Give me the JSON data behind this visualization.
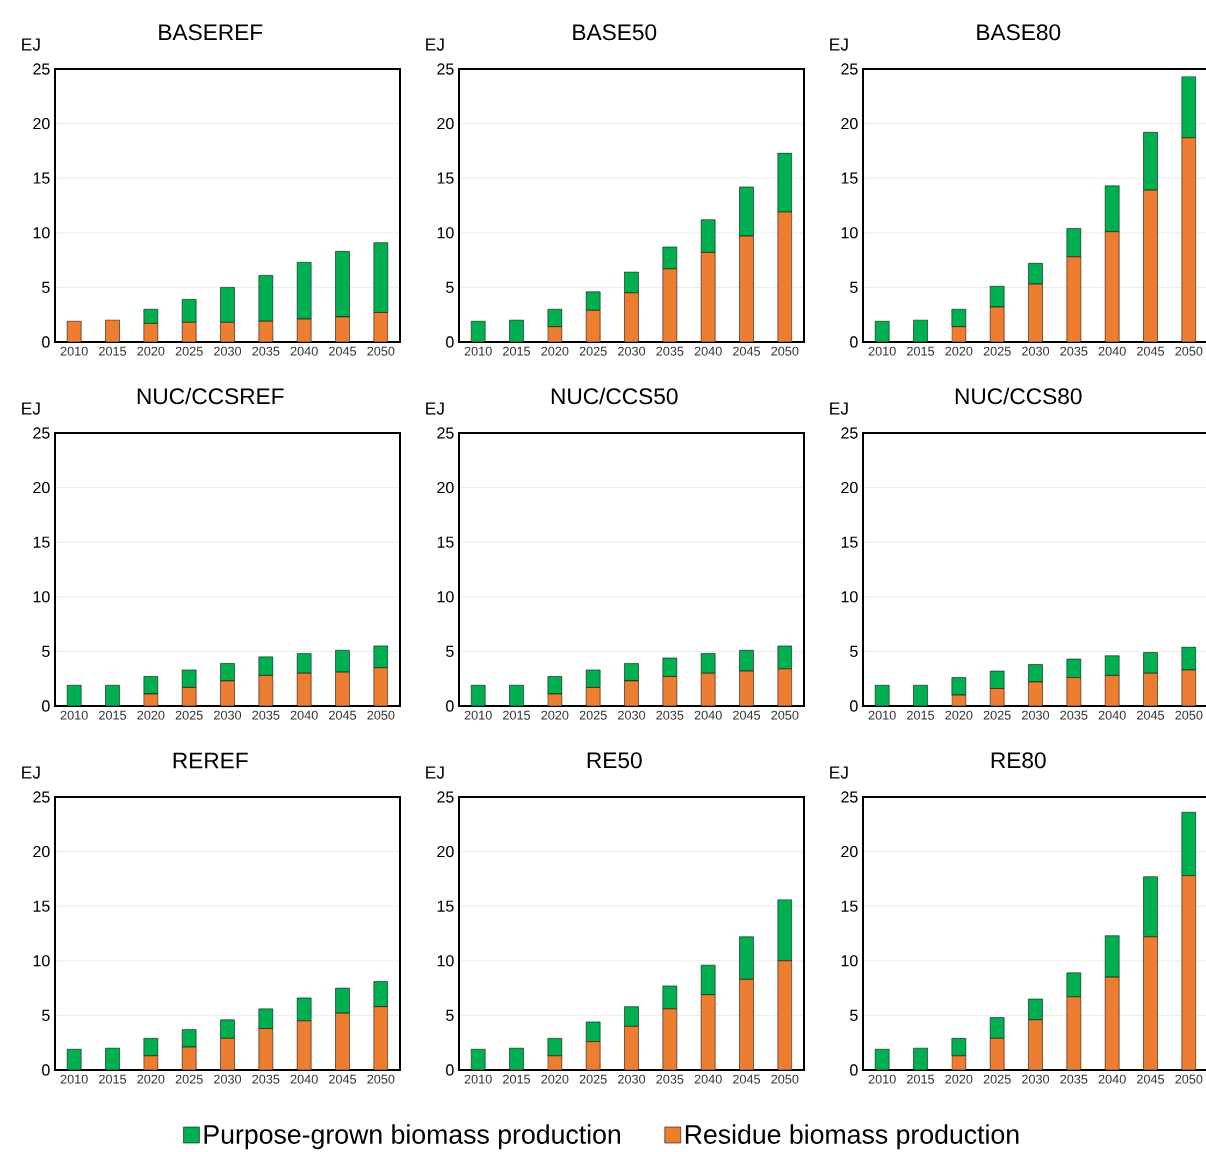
{
  "chart_data": [
    {
      "type": "bar",
      "title": "BASEREF",
      "ylabel": "EJ",
      "stacked": true,
      "grid": "y",
      "categories": [
        "2010",
        "2015",
        "2020",
        "2025",
        "2030",
        "2035",
        "2040",
        "2045",
        "2050"
      ],
      "ylim": [
        0,
        25
      ],
      "yticks": [
        0,
        5,
        10,
        15,
        20,
        25
      ],
      "series": [
        {
          "color": "#ed7d31",
          "values": [
            1.9,
            2.0,
            1.7,
            1.8,
            1.8,
            1.9,
            2.1,
            2.3,
            2.7
          ]
        },
        {
          "color": "#00b050",
          "values": [
            0,
            0,
            1.3,
            2.1,
            3.2,
            4.2,
            5.2,
            6.0,
            6.4
          ]
        }
      ]
    },
    {
      "type": "bar",
      "title": "BASE50",
      "ylabel": "EJ",
      "stacked": true,
      "grid": "y",
      "categories": [
        "2010",
        "2015",
        "2020",
        "2025",
        "2030",
        "2035",
        "2040",
        "2045",
        "2050"
      ],
      "ylim": [
        0,
        25
      ],
      "yticks": [
        0,
        5,
        10,
        15,
        20,
        25
      ],
      "series": [
        {
          "color": "#ed7d31",
          "values": [
            0,
            0,
            1.4,
            2.9,
            4.5,
            6.7,
            8.2,
            9.7,
            11.9
          ]
        },
        {
          "color": "#00b050",
          "values": [
            1.9,
            2.0,
            1.6,
            1.7,
            1.9,
            2.0,
            3.0,
            4.5,
            5.4
          ]
        }
      ]
    },
    {
      "type": "bar",
      "title": "BASE80",
      "ylabel": "EJ",
      "stacked": true,
      "grid": "y",
      "categories": [
        "2010",
        "2015",
        "2020",
        "2025",
        "2030",
        "2035",
        "2040",
        "2045",
        "2050"
      ],
      "ylim": [
        0,
        25
      ],
      "yticks": [
        0,
        5,
        10,
        15,
        20,
        25
      ],
      "series": [
        {
          "color": "#ed7d31",
          "values": [
            0,
            0,
            1.4,
            3.2,
            5.3,
            7.8,
            10.1,
            13.9,
            18.7
          ]
        },
        {
          "color": "#00b050",
          "values": [
            1.9,
            2.0,
            1.6,
            1.9,
            1.9,
            2.6,
            4.2,
            5.3,
            5.6
          ]
        }
      ]
    },
    {
      "type": "bar",
      "title": "NUC/CCSREF",
      "ylabel": "EJ",
      "stacked": true,
      "grid": "y",
      "categories": [
        "2010",
        "2015",
        "2020",
        "2025",
        "2030",
        "2035",
        "2040",
        "2045",
        "2050"
      ],
      "ylim": [
        0,
        25
      ],
      "yticks": [
        0,
        5,
        10,
        15,
        20,
        25
      ],
      "series": [
        {
          "color": "#ed7d31",
          "values": [
            0,
            0,
            1.1,
            1.7,
            2.3,
            2.8,
            3.0,
            3.1,
            3.5
          ]
        },
        {
          "color": "#00b050",
          "values": [
            1.9,
            1.9,
            1.6,
            1.6,
            1.6,
            1.7,
            1.8,
            2.0,
            2.0
          ]
        }
      ]
    },
    {
      "type": "bar",
      "title": "NUC/CCS50",
      "ylabel": "EJ",
      "stacked": true,
      "grid": "y",
      "categories": [
        "2010",
        "2015",
        "2020",
        "2025",
        "2030",
        "2035",
        "2040",
        "2045",
        "2050"
      ],
      "ylim": [
        0,
        25
      ],
      "yticks": [
        0,
        5,
        10,
        15,
        20,
        25
      ],
      "series": [
        {
          "color": "#ed7d31",
          "values": [
            0,
            0,
            1.1,
            1.7,
            2.3,
            2.7,
            3.0,
            3.2,
            3.4
          ]
        },
        {
          "color": "#00b050",
          "values": [
            1.9,
            1.9,
            1.6,
            1.6,
            1.6,
            1.7,
            1.8,
            1.9,
            2.1
          ]
        }
      ]
    },
    {
      "type": "bar",
      "title": "NUC/CCS80",
      "ylabel": "EJ",
      "stacked": true,
      "grid": "y",
      "categories": [
        "2010",
        "2015",
        "2020",
        "2025",
        "2030",
        "2035",
        "2040",
        "2045",
        "2050"
      ],
      "ylim": [
        0,
        25
      ],
      "yticks": [
        0,
        5,
        10,
        15,
        20,
        25
      ],
      "series": [
        {
          "color": "#ed7d31",
          "values": [
            0,
            0,
            1.0,
            1.6,
            2.2,
            2.6,
            2.8,
            3.0,
            3.3
          ]
        },
        {
          "color": "#00b050",
          "values": [
            1.9,
            1.9,
            1.6,
            1.6,
            1.6,
            1.7,
            1.8,
            1.9,
            2.1
          ]
        }
      ]
    },
    {
      "type": "bar",
      "title": "REREF",
      "ylabel": "EJ",
      "stacked": true,
      "grid": "y",
      "categories": [
        "2010",
        "2015",
        "2020",
        "2025",
        "2030",
        "2035",
        "2040",
        "2045",
        "2050"
      ],
      "ylim": [
        0,
        25
      ],
      "yticks": [
        0,
        5,
        10,
        15,
        20,
        25
      ],
      "series": [
        {
          "color": "#ed7d31",
          "values": [
            0,
            0,
            1.3,
            2.1,
            2.9,
            3.8,
            4.5,
            5.2,
            5.8
          ]
        },
        {
          "color": "#00b050",
          "values": [
            1.9,
            2.0,
            1.6,
            1.6,
            1.7,
            1.8,
            2.1,
            2.3,
            2.3
          ]
        }
      ]
    },
    {
      "type": "bar",
      "title": "RE50",
      "ylabel": "EJ",
      "stacked": true,
      "grid": "y",
      "categories": [
        "2010",
        "2015",
        "2020",
        "2025",
        "2030",
        "2035",
        "2040",
        "2045",
        "2050"
      ],
      "ylim": [
        0,
        25
      ],
      "yticks": [
        0,
        5,
        10,
        15,
        20,
        25
      ],
      "series": [
        {
          "color": "#ed7d31",
          "values": [
            0,
            0,
            1.3,
            2.6,
            4.0,
            5.6,
            6.9,
            8.3,
            10.0
          ]
        },
        {
          "color": "#00b050",
          "values": [
            1.9,
            2.0,
            1.6,
            1.8,
            1.8,
            2.1,
            2.7,
            3.9,
            5.6
          ]
        }
      ]
    },
    {
      "type": "bar",
      "title": "RE80",
      "ylabel": "EJ",
      "stacked": true,
      "grid": "y",
      "legend": "bottom",
      "categories": [
        "2010",
        "2015",
        "2020",
        "2025",
        "2030",
        "2035",
        "2040",
        "2045",
        "2050"
      ],
      "ylim": [
        0,
        25
      ],
      "yticks": [
        0,
        5,
        10,
        15,
        20,
        25
      ],
      "series": [
        {
          "name": "Residue biomass production",
          "color": "#ed7d31",
          "values": [
            0,
            0,
            1.3,
            2.9,
            4.6,
            6.7,
            8.5,
            12.2,
            17.8
          ]
        },
        {
          "name": "Purpose-grown biomass production",
          "color": "#00b050",
          "values": [
            1.9,
            2.0,
            1.6,
            1.9,
            1.9,
            2.2,
            3.8,
            5.5,
            5.8
          ]
        }
      ]
    }
  ]
}
